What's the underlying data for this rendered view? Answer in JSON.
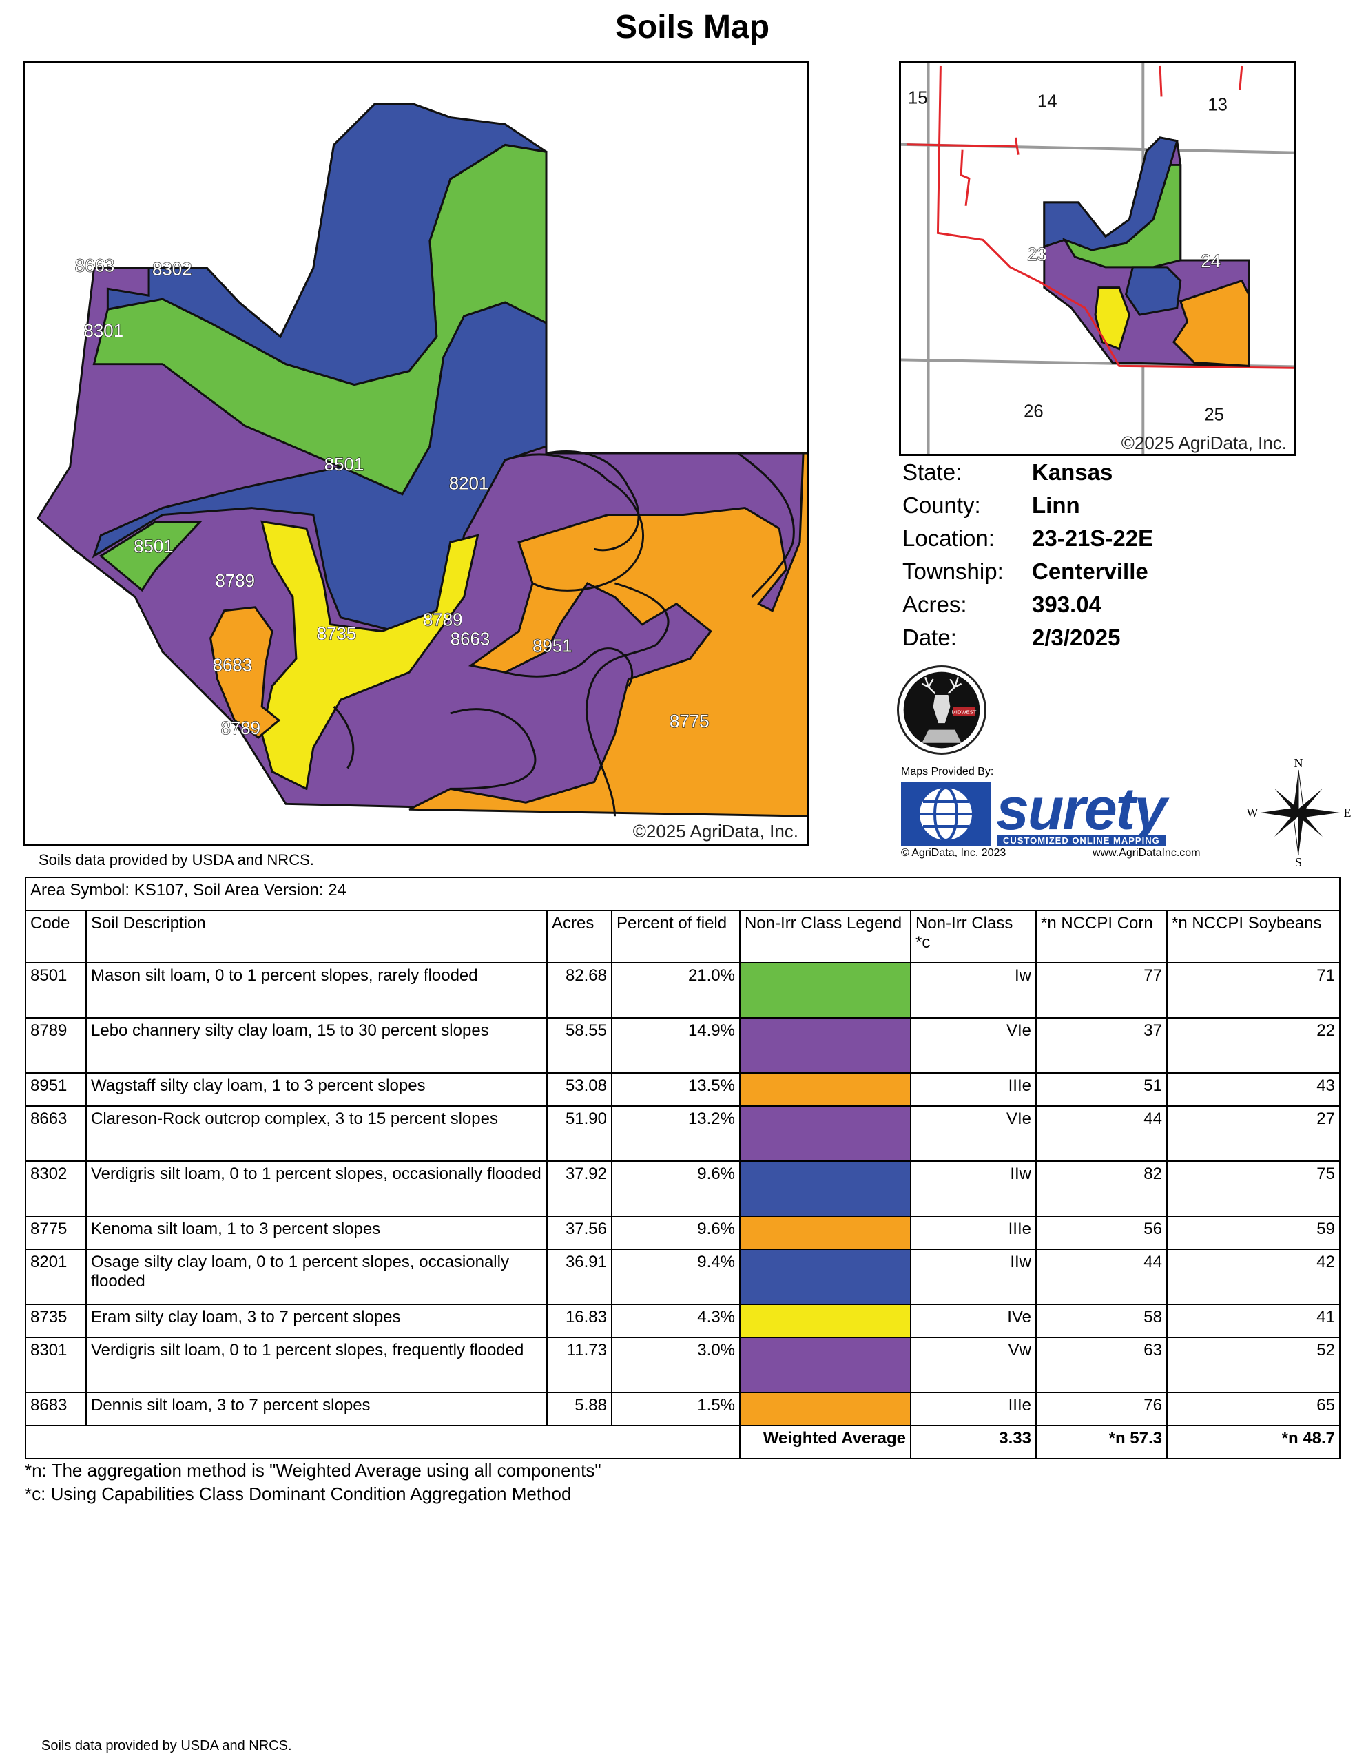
{
  "title": "Soils Map",
  "main_map": {
    "labels": [
      "8663",
      "8302",
      "8301",
      "8501",
      "8201",
      "8501",
      "8789",
      "8735",
      "8789",
      "8663",
      "8951",
      "8683",
      "8789",
      "8775"
    ],
    "copyright": "©2025 AgriData, Inc.",
    "credit": "Soils data provided by USDA and NRCS."
  },
  "inset_map": {
    "sections": [
      "15",
      "14",
      "13",
      "23",
      "24",
      "26",
      "25"
    ],
    "copyright": "©2025 AgriData, Inc."
  },
  "info": [
    {
      "key": "State:",
      "value": "Kansas"
    },
    {
      "key": "County:",
      "value": "Linn"
    },
    {
      "key": "Location:",
      "value": "23-21S-22E"
    },
    {
      "key": "Township:",
      "value": "Centerville"
    },
    {
      "key": "Acres:",
      "value": "393.04"
    },
    {
      "key": "Date:",
      "value": "2/3/2025"
    }
  ],
  "logo": {
    "text": "MIDWEST"
  },
  "surety": {
    "maps_provided": "Maps Provided By:",
    "name": "surety",
    "tagline": "CUSTOMIZED ONLINE MAPPING",
    "copyright": "© AgriData, Inc. 2023",
    "url": "www.AgriDataInc.com"
  },
  "compass": {
    "n": "N",
    "s": "S",
    "e": "E",
    "w": "W"
  },
  "colors": {
    "green": "#6abd45",
    "purple": "#7e4fa1",
    "orange": "#f5a11f",
    "blue": "#3a53a4",
    "yellow": "#f3e817",
    "road": "#e3262b",
    "section_line": "#9a9a9a"
  },
  "table": {
    "area_symbol": "Area Symbol: KS107, Soil Area Version: 24",
    "headers": [
      "Code",
      "Soil Description",
      "Acres",
      "Percent of field",
      "Non-Irr Class Legend",
      "Non-Irr Class *c",
      "*n NCCPI Corn",
      "*n NCCPI Soybeans"
    ],
    "rows": [
      {
        "code": "8501",
        "description": "Mason silt loam, 0 to 1 percent slopes, rarely flooded",
        "acres": "82.68",
        "percent": "21.0%",
        "color": "#6abd45",
        "class": "Iw",
        "corn": "77",
        "soy": "71"
      },
      {
        "code": "8789",
        "description": "Lebo channery silty clay loam, 15 to 30 percent slopes",
        "acres": "58.55",
        "percent": "14.9%",
        "color": "#7e4fa1",
        "class": "VIe",
        "corn": "37",
        "soy": "22"
      },
      {
        "code": "8951",
        "description": "Wagstaff silty clay loam, 1 to 3 percent slopes",
        "acres": "53.08",
        "percent": "13.5%",
        "color": "#f5a11f",
        "class": "IIIe",
        "corn": "51",
        "soy": "43"
      },
      {
        "code": "8663",
        "description": "Clareson-Rock outcrop complex, 3 to 15 percent slopes",
        "acres": "51.90",
        "percent": "13.2%",
        "color": "#7e4fa1",
        "class": "VIe",
        "corn": "44",
        "soy": "27"
      },
      {
        "code": "8302",
        "description": "Verdigris silt loam, 0 to 1 percent slopes, occasionally flooded",
        "acres": "37.92",
        "percent": "9.6%",
        "color": "#3a53a4",
        "class": "IIw",
        "corn": "82",
        "soy": "75"
      },
      {
        "code": "8775",
        "description": "Kenoma silt loam, 1 to 3 percent slopes",
        "acres": "37.56",
        "percent": "9.6%",
        "color": "#f5a11f",
        "class": "IIIe",
        "corn": "56",
        "soy": "59"
      },
      {
        "code": "8201",
        "description": "Osage silty clay loam, 0 to 1 percent slopes, occasionally flooded",
        "acres": "36.91",
        "percent": "9.4%",
        "color": "#3a53a4",
        "class": "IIw",
        "corn": "44",
        "soy": "42"
      },
      {
        "code": "8735",
        "description": "Eram silty clay loam, 3 to 7 percent slopes",
        "acres": "16.83",
        "percent": "4.3%",
        "color": "#f3e817",
        "class": "IVe",
        "corn": "58",
        "soy": "41"
      },
      {
        "code": "8301",
        "description": "Verdigris silt loam, 0 to 1 percent slopes, frequently flooded",
        "acres": "11.73",
        "percent": "3.0%",
        "color": "#7e4fa1",
        "class": "Vw",
        "corn": "63",
        "soy": "52"
      },
      {
        "code": "8683",
        "description": "Dennis silt loam, 3 to 7 percent slopes",
        "acres": "5.88",
        "percent": "1.5%",
        "color": "#f5a11f",
        "class": "IIIe",
        "corn": "76",
        "soy": "65"
      }
    ],
    "footer": {
      "label": "Weighted Average",
      "class": "3.33",
      "corn": "*n 57.3",
      "soy": "*n 48.7"
    }
  },
  "footnotes": [
    "*n: The aggregation method is \"Weighted Average using all components\"",
    "*c: Using Capabilities Class Dominant Condition Aggregation Method"
  ],
  "bottom_credit": "Soils data provided by USDA and NRCS."
}
